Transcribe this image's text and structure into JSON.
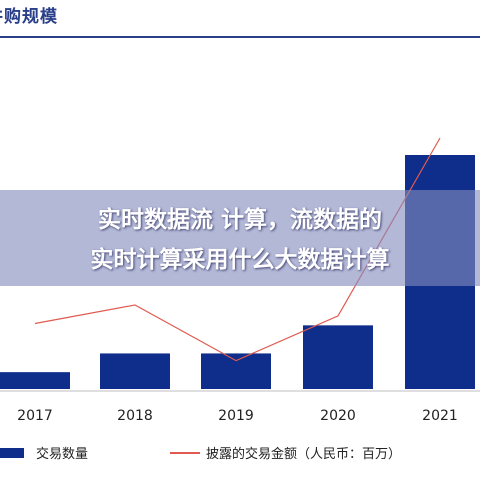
{
  "header": {
    "title": "并购规模"
  },
  "overlay": {
    "line1": "实时数据流 计算，流数据的",
    "line2": "实时计算采用什么大数据计算"
  },
  "colors": {
    "bar": "#0f2d8a",
    "line": "#e05a4f",
    "title": "#2a3f8a"
  },
  "chart_data": {
    "type": "bar",
    "categories": [
      "2017",
      "2018",
      "2019",
      "2020",
      "2021"
    ],
    "series": [
      {
        "name": "交易数量",
        "type": "bar",
        "values": [
          18,
          38,
          38,
          68,
          250
        ]
      },
      {
        "name": "披露的交易金额（人民币：百万）",
        "type": "line",
        "values": [
          300,
          385,
          130,
          335,
          1150
        ]
      }
    ],
    "legend": "bottom",
    "grid": false
  }
}
